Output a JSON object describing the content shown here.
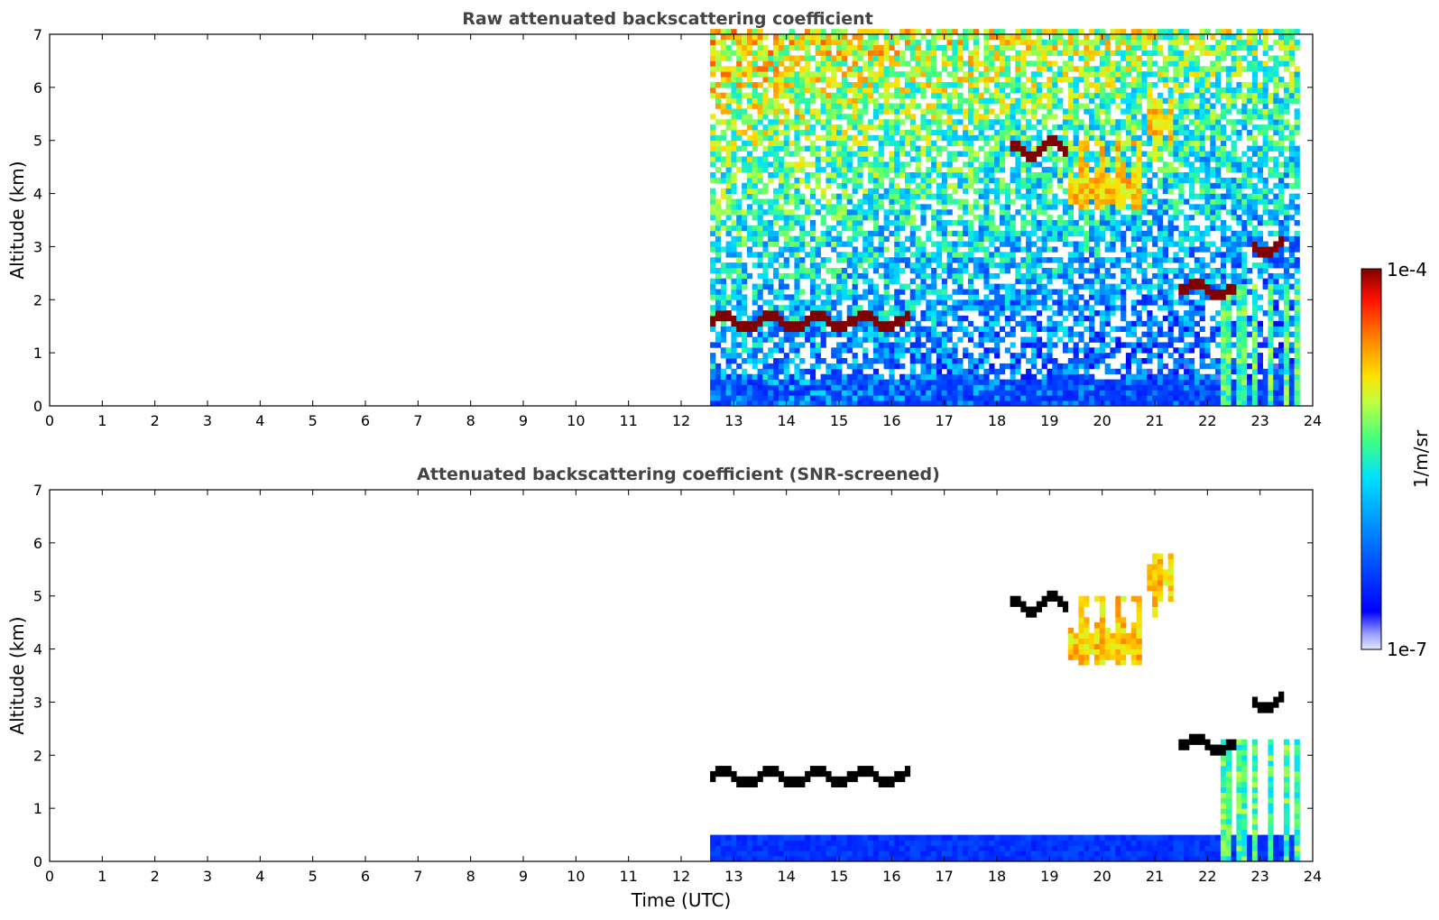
{
  "chart_data": [
    {
      "type": "heatmap",
      "title": "Raw attenuated backscattering coefficient",
      "xlabel": "",
      "ylabel": "Altitude (km)",
      "xlim": [
        0,
        24
      ],
      "ylim": [
        0,
        7
      ],
      "xticks": [
        0,
        1,
        2,
        3,
        4,
        5,
        6,
        7,
        8,
        9,
        10,
        11,
        12,
        13,
        14,
        15,
        16,
        17,
        18,
        19,
        20,
        21,
        22,
        23,
        24
      ],
      "yticks": [
        0,
        1,
        2,
        3,
        4,
        5,
        6,
        7
      ],
      "data_start_time": 12.55,
      "data_end_time": 23.8,
      "features": [
        {
          "kind": "noise_field",
          "x_range": [
            12.55,
            23.8
          ],
          "y_range": [
            0,
            7
          ]
        },
        {
          "kind": "boundary_layer",
          "x_range": [
            12.55,
            23.8
          ],
          "top": 0.55
        },
        {
          "kind": "cloud_layer",
          "altitude_km": 1.6,
          "x_range": [
            12.55,
            16.3
          ]
        },
        {
          "kind": "cloud_layer",
          "altitude_km": 4.85,
          "x_range": [
            18.3,
            19.4
          ]
        },
        {
          "kind": "cloud_layer",
          "altitude_km": 2.2,
          "x_range": [
            21.5,
            22.6
          ]
        },
        {
          "kind": "cloud_layer",
          "altitude_km": 3.0,
          "x_range": [
            22.9,
            23.5
          ]
        },
        {
          "kind": "virga",
          "x_range": [
            19.4,
            20.8
          ],
          "y_range": [
            3.7,
            5.0
          ]
        },
        {
          "kind": "virga",
          "x_range": [
            20.9,
            21.4
          ],
          "y_range": [
            4.6,
            5.8
          ]
        },
        {
          "kind": "precipitation",
          "x_range": [
            22.3,
            23.8
          ],
          "y_range": [
            0,
            2.3
          ]
        }
      ]
    },
    {
      "type": "heatmap",
      "title": "Attenuated backscattering coefficient (SNR-screened)",
      "xlabel": "Time (UTC)",
      "ylabel": "Altitude (km)",
      "xlim": [
        0,
        24
      ],
      "ylim": [
        0,
        7
      ],
      "xticks": [
        0,
        1,
        2,
        3,
        4,
        5,
        6,
        7,
        8,
        9,
        10,
        11,
        12,
        13,
        14,
        15,
        16,
        17,
        18,
        19,
        20,
        21,
        22,
        23,
        24
      ],
      "yticks": [
        0,
        1,
        2,
        3,
        4,
        5,
        6,
        7
      ],
      "data_start_time": 12.55,
      "data_end_time": 23.8,
      "features": [
        {
          "kind": "boundary_layer",
          "x_range": [
            12.55,
            23.8
          ],
          "top": 0.5
        },
        {
          "kind": "cloud_layer",
          "altitude_km": 1.6,
          "x_range": [
            12.55,
            16.3
          ]
        },
        {
          "kind": "cloud_layer",
          "altitude_km": 4.85,
          "x_range": [
            18.3,
            19.4
          ]
        },
        {
          "kind": "cloud_layer",
          "altitude_km": 2.2,
          "x_range": [
            21.5,
            22.6
          ]
        },
        {
          "kind": "cloud_layer",
          "altitude_km": 3.0,
          "x_range": [
            22.9,
            23.5
          ]
        },
        {
          "kind": "virga",
          "x_range": [
            19.4,
            20.8
          ],
          "y_range": [
            3.7,
            5.0
          ]
        },
        {
          "kind": "virga",
          "x_range": [
            20.9,
            21.4
          ],
          "y_range": [
            4.6,
            5.8
          ]
        },
        {
          "kind": "precipitation",
          "x_range": [
            22.3,
            23.8
          ],
          "y_range": [
            0,
            2.3
          ]
        }
      ]
    }
  ],
  "colorbar": {
    "label": "1/m/sr",
    "max_label": "1e-4",
    "min_label": "1e-7",
    "scale": "log",
    "colormap": "jet",
    "range": [
      1e-07,
      0.0001
    ]
  },
  "colors": {
    "axis": "#000000",
    "title": "#444444",
    "cloud_saturated": "#000000"
  }
}
